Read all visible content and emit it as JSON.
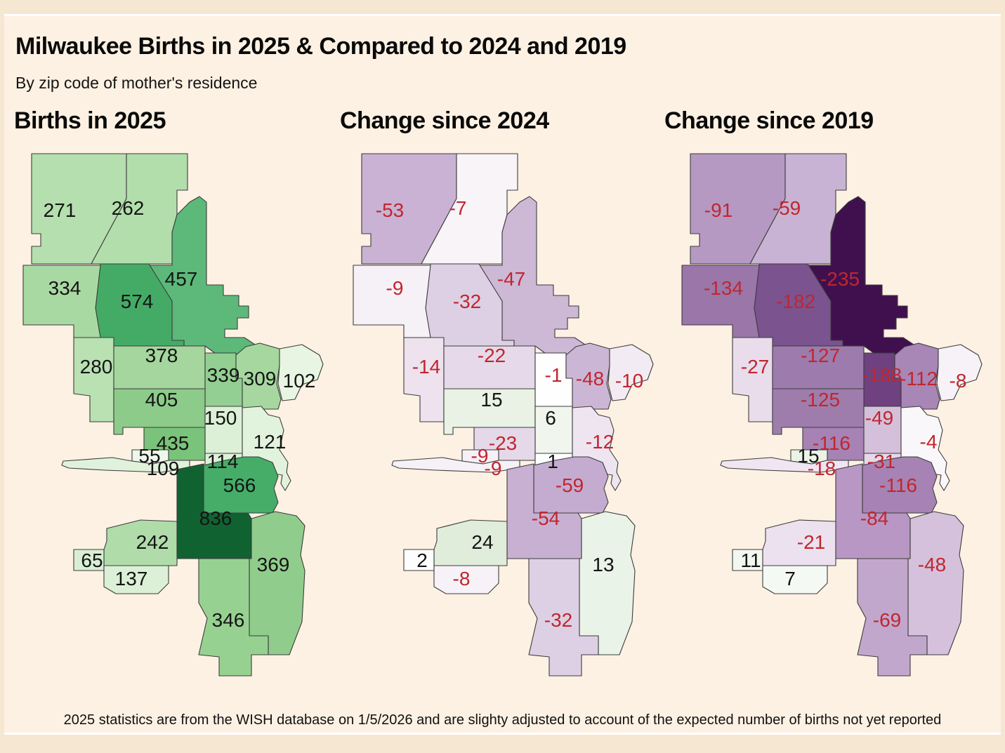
{
  "page": {
    "title": "Milwaukee Births in 2025 & Compared to 2024 and 2019",
    "subtitle": "By zip code of mother's residence",
    "footnote": "2025 statistics are from the WISH database on 1/5/2026 and are slighty adjusted to account of the expected number of births not yet reported"
  },
  "colors": {
    "negative_label": "#c0262e",
    "positive_label": "#141414",
    "region_border": "#3c3c3c",
    "canvas_background": "#fdf1e3",
    "frame_background": "#f6e7d3"
  },
  "chart_data": {
    "type": "heatmap",
    "subtype": "choropleth-map",
    "geography": "Milwaukee zip codes (zip code of mother's residence)",
    "maps": [
      {
        "heading": "Births in 2025",
        "field": "births_2025",
        "palette": "sequential greens"
      },
      {
        "heading": "Change since 2024",
        "field": "change_since_2024",
        "palette": "purple-green diverging"
      },
      {
        "heading": "Change since 2019",
        "field": "change_since_2019",
        "palette": "purple-green diverging"
      }
    ],
    "regions": [
      {
        "id": "r01",
        "values": [
          271,
          -53,
          -91
        ],
        "fills": [
          "#b5dfae",
          "#c9b2d3",
          "#b599c3"
        ]
      },
      {
        "id": "r02",
        "values": [
          262,
          -7,
          -59
        ],
        "fills": [
          "#b2deab",
          "#f8f4f8",
          "#c9b3d4"
        ]
      },
      {
        "id": "r03",
        "values": [
          457,
          -47,
          -235
        ],
        "fills": [
          "#5cb97a",
          "#cdb8d6",
          "#40104e"
        ]
      },
      {
        "id": "r04",
        "values": [
          574,
          -32,
          -182
        ],
        "fills": [
          "#44ab66",
          "#ded0e4",
          "#7b538f"
        ]
      },
      {
        "id": "r05",
        "values": [
          334,
          -9,
          -134
        ],
        "fills": [
          "#a9d9a2",
          "#f6f1f6",
          "#9a76a9"
        ]
      },
      {
        "id": "r06",
        "values": [
          280,
          -14,
          -27
        ],
        "fills": [
          "#b9e1b2",
          "#ede2ee",
          "#e9ddec"
        ]
      },
      {
        "id": "r07",
        "values": [
          378,
          -22,
          -127
        ],
        "fills": [
          "#a4d69d",
          "#e6d9e9",
          "#9d7bac"
        ]
      },
      {
        "id": "r08",
        "values": [
          339,
          -1,
          -188
        ],
        "fills": [
          "#93cf92",
          "#fefefe",
          "#6f4180"
        ]
      },
      {
        "id": "r09",
        "values": [
          309,
          -48,
          -112
        ],
        "fills": [
          "#a6d79f",
          "#ccb6d5",
          "#a886b5"
        ]
      },
      {
        "id": "r10",
        "values": [
          102,
          -10,
          -8
        ],
        "fills": [
          "#e7f5e2",
          "#f3ebf3",
          "#f7f2f8"
        ]
      },
      {
        "id": "r11",
        "values": [
          405,
          15,
          -125
        ],
        "fills": [
          "#8ccb89",
          "#e9f2e5",
          "#9e7dad"
        ]
      },
      {
        "id": "r12",
        "values": [
          150,
          6,
          -49
        ],
        "fills": [
          "#dcf0d7",
          "#f0f6ee",
          "#d4c0db"
        ]
      },
      {
        "id": "r13",
        "values": [
          435,
          -23,
          -116
        ],
        "fills": [
          "#7ac37a",
          "#e5d8e8",
          "#a683b4"
        ]
      },
      {
        "id": "r14",
        "values": [
          121,
          -12,
          -4
        ],
        "fills": [
          "#e2f3dd",
          "#efe5f0",
          "#faf7fa"
        ]
      },
      {
        "id": "r15",
        "values": [
          114,
          1,
          -31
        ],
        "fills": [
          "#def1d9",
          "#fdfefd",
          "#e6d8ea"
        ]
      },
      {
        "id": "r16",
        "values": [
          55,
          -9,
          15
        ],
        "fills": [
          "#eef8ea",
          "#f6f1f6",
          "#eaf3e6"
        ]
      },
      {
        "id": "r17",
        "values": [
          109,
          -9,
          -18
        ],
        "fills": [
          "#e0f2db",
          "#f6f1f6",
          "#efe6f1"
        ]
      },
      {
        "id": "r18",
        "values": [
          566,
          -59,
          -116
        ],
        "fills": [
          "#46ad69",
          "#c4abd0",
          "#a683b4"
        ]
      },
      {
        "id": "r19",
        "values": [
          836,
          -54,
          -84
        ],
        "fills": [
          "#116231",
          "#c8b0d2",
          "#b897c4"
        ]
      },
      {
        "id": "r20",
        "values": [
          242,
          24,
          -21
        ],
        "fills": [
          "#b0dca9",
          "#dfedda",
          "#ece1ee"
        ]
      },
      {
        "id": "r21",
        "values": [
          65,
          2,
          11
        ],
        "fills": [
          "#d9efd4",
          "#fcfdfc",
          "#f2f7f0"
        ]
      },
      {
        "id": "r22",
        "values": [
          137,
          -8,
          7
        ],
        "fills": [
          "#dbf0d6",
          "#f7f2f7",
          "#f5f9f3"
        ]
      },
      {
        "id": "r23",
        "values": [
          369,
          13,
          -48
        ],
        "fills": [
          "#90cd8c",
          "#eaf3e7",
          "#d5c1dc"
        ]
      },
      {
        "id": "r24",
        "values": [
          346,
          -32,
          -69
        ],
        "fills": [
          "#97d191",
          "#ded0e4",
          "#c2a7cd"
        ]
      }
    ]
  }
}
